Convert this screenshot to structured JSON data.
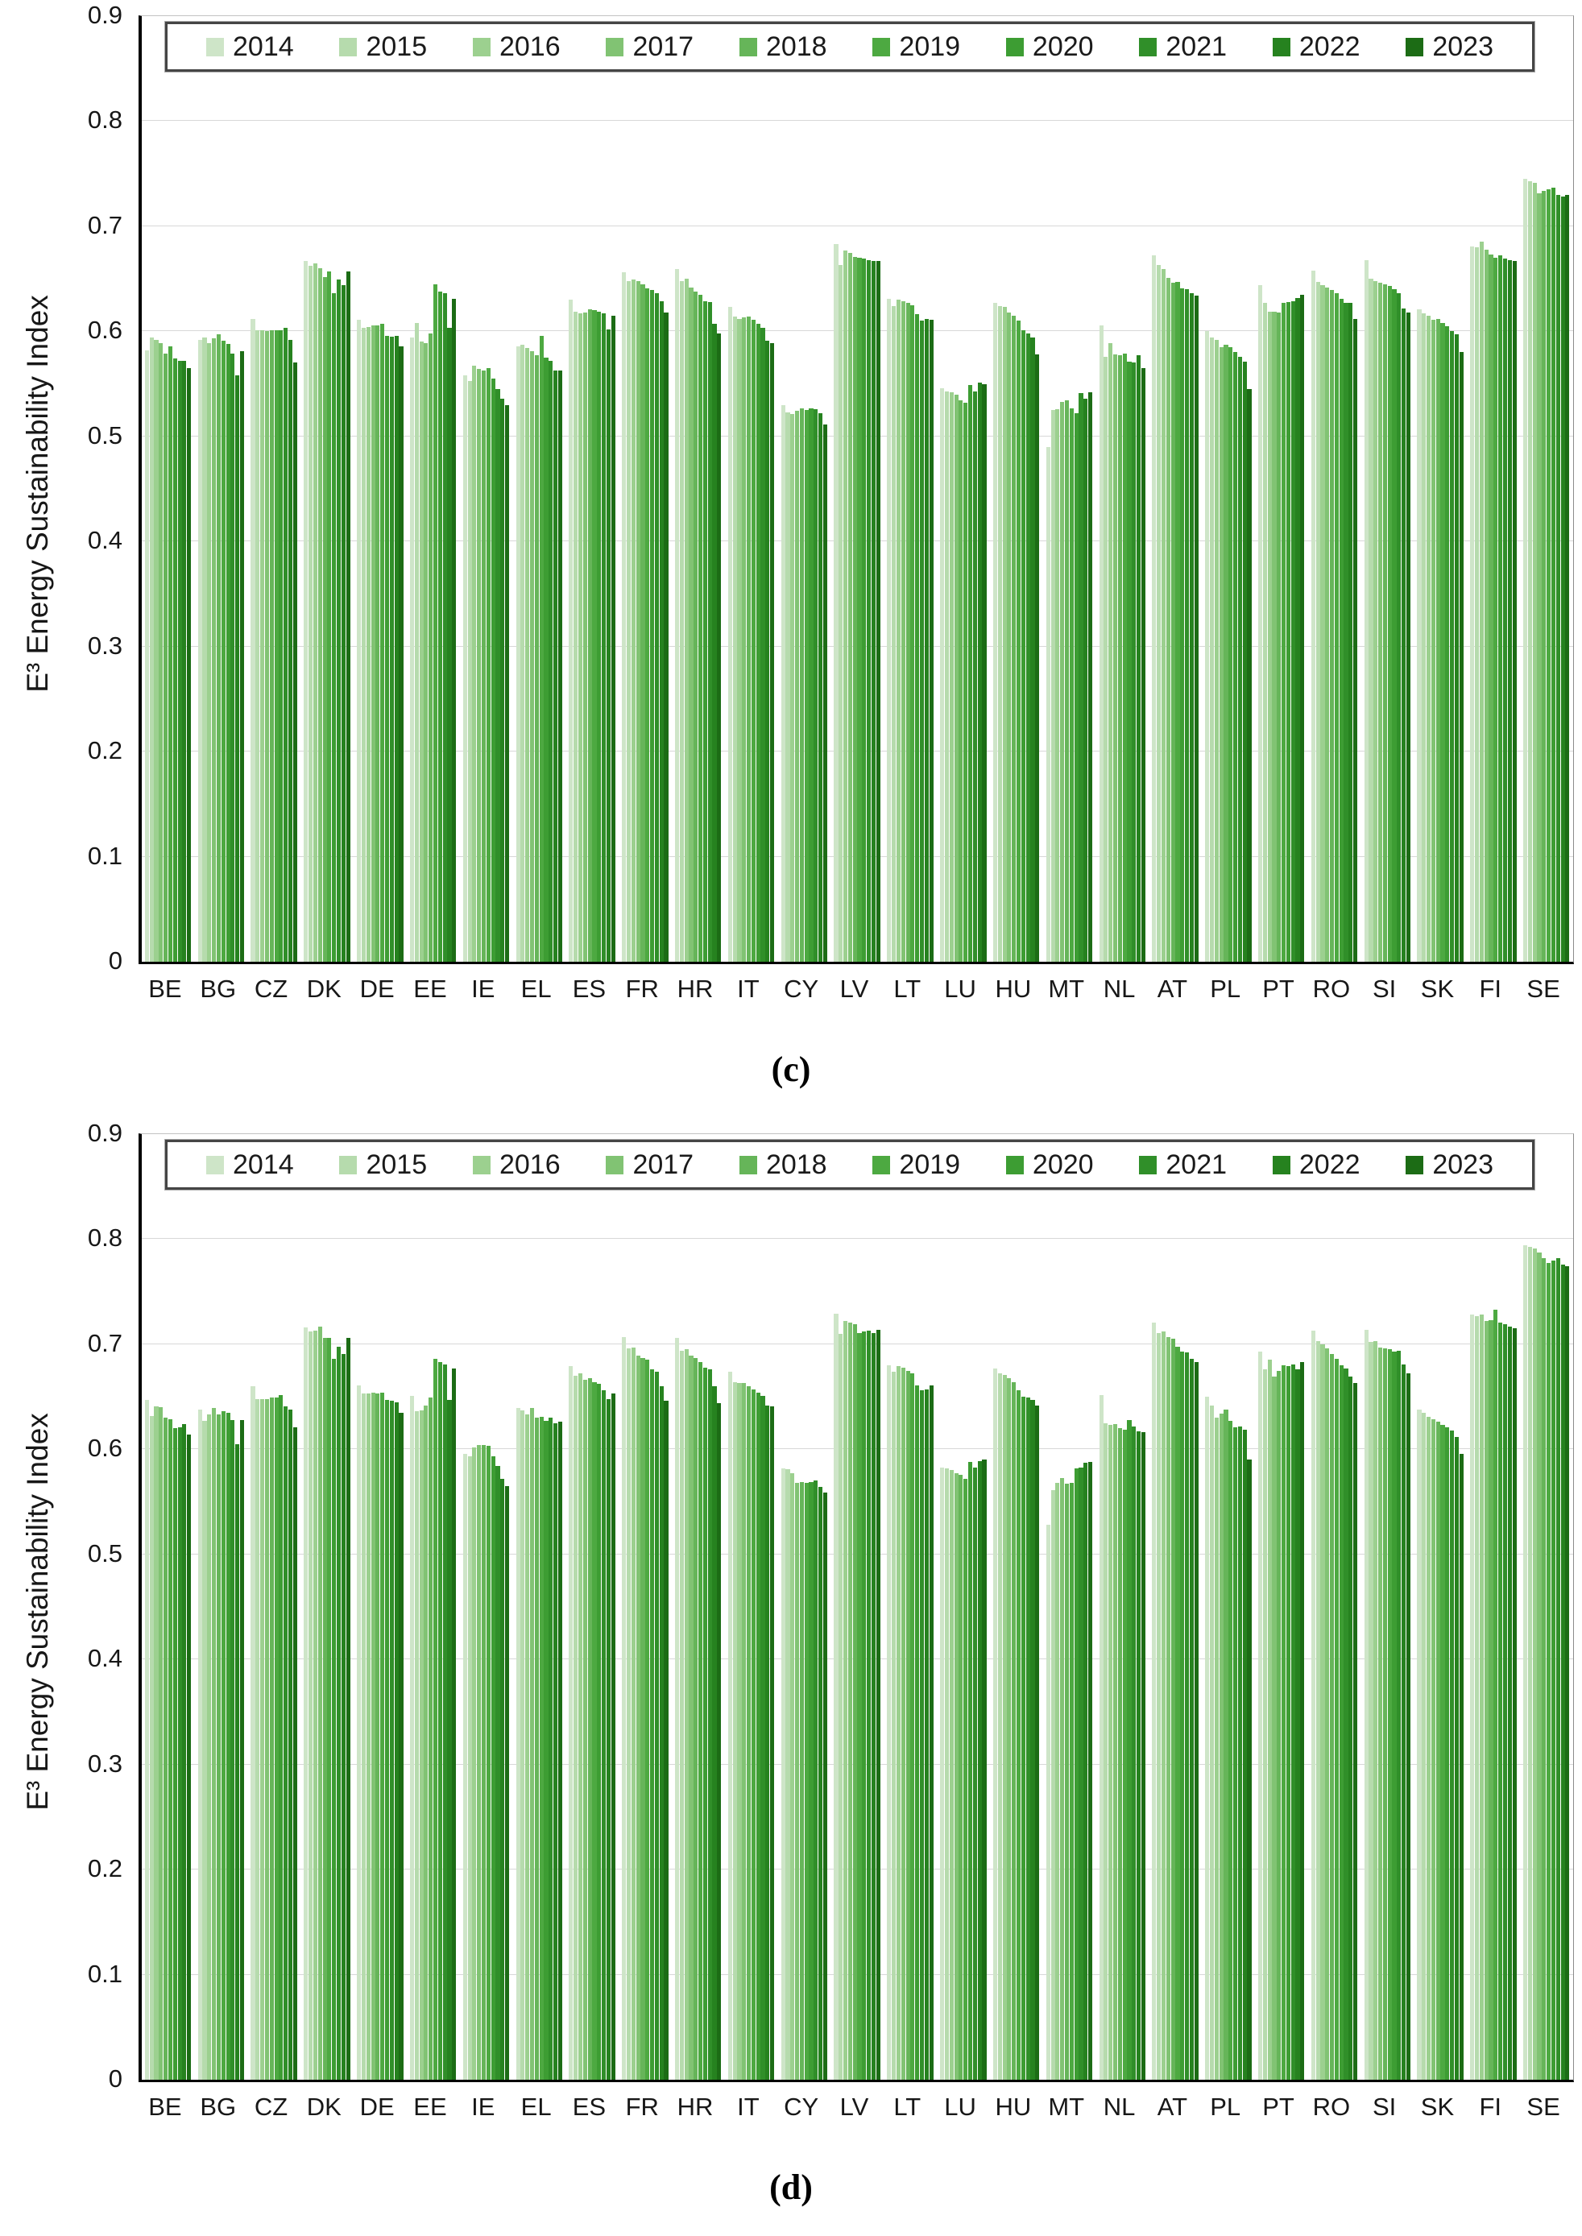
{
  "figure": {
    "ylabel": "E³ Energy Sustainability Index",
    "panels": [
      {
        "caption": "(c)"
      },
      {
        "caption": "(d)"
      }
    ]
  },
  "chart_data": [
    {
      "type": "bar",
      "title": "(c)",
      "xlabel": "",
      "ylabel": "E³ Energy Sustainability Index",
      "ylim": [
        0,
        0.9
      ],
      "yticks": [
        "0",
        "0.1",
        "0.2",
        "0.3",
        "0.4",
        "0.5",
        "0.6",
        "0.7",
        "0.8",
        "0.9"
      ],
      "grid": true,
      "legend_position": "top",
      "categories": [
        "BE",
        "BG",
        "CZ",
        "DK",
        "DE",
        "EE",
        "IE",
        "EL",
        "ES",
        "FR",
        "HR",
        "IT",
        "CY",
        "LV",
        "LT",
        "LU",
        "HU",
        "MT",
        "NL",
        "AT",
        "PL",
        "PT",
        "RO",
        "SI",
        "SK",
        "FI",
        "SE"
      ],
      "series": [
        {
          "name": "2014",
          "color": "#cee5c8",
          "values": [
            0.582,
            0.592,
            0.612,
            0.667,
            0.611,
            0.594,
            0.558,
            0.586,
            0.63,
            0.656,
            0.659,
            0.623,
            0.53,
            0.683,
            0.631,
            0.546,
            0.627,
            0.49,
            0.606,
            0.672,
            0.6,
            0.644,
            0.658,
            0.668,
            0.621,
            0.681,
            0.745
          ]
        },
        {
          "name": "2015",
          "color": "#b6dbad",
          "values": [
            0.594,
            0.594,
            0.601,
            0.662,
            0.603,
            0.608,
            0.553,
            0.587,
            0.619,
            0.648,
            0.648,
            0.614,
            0.523,
            0.663,
            0.624,
            0.543,
            0.624,
            0.525,
            0.576,
            0.663,
            0.594,
            0.627,
            0.647,
            0.65,
            0.617,
            0.68,
            0.743
          ]
        },
        {
          "name": "2016",
          "color": "#9cd08f",
          "values": [
            0.592,
            0.589,
            0.601,
            0.665,
            0.604,
            0.59,
            0.567,
            0.584,
            0.617,
            0.649,
            0.65,
            0.612,
            0.521,
            0.677,
            0.63,
            0.542,
            0.623,
            0.526,
            0.589,
            0.659,
            0.592,
            0.619,
            0.644,
            0.648,
            0.615,
            0.685,
            0.741
          ]
        },
        {
          "name": "2017",
          "color": "#81c373",
          "values": [
            0.589,
            0.593,
            0.6,
            0.66,
            0.606,
            0.589,
            0.564,
            0.581,
            0.618,
            0.648,
            0.642,
            0.613,
            0.524,
            0.675,
            0.629,
            0.54,
            0.618,
            0.533,
            0.578,
            0.651,
            0.585,
            0.619,
            0.642,
            0.646,
            0.611,
            0.678,
            0.731
          ]
        },
        {
          "name": "2018",
          "color": "#66b559",
          "values": [
            0.579,
            0.597,
            0.601,
            0.652,
            0.606,
            0.598,
            0.563,
            0.577,
            0.621,
            0.645,
            0.638,
            0.614,
            0.527,
            0.671,
            0.627,
            0.534,
            0.615,
            0.534,
            0.577,
            0.646,
            0.587,
            0.618,
            0.639,
            0.645,
            0.612,
            0.673,
            0.734
          ]
        },
        {
          "name": "2019",
          "color": "#4da941",
          "values": [
            0.586,
            0.591,
            0.601,
            0.657,
            0.607,
            0.645,
            0.565,
            0.596,
            0.62,
            0.641,
            0.635,
            0.611,
            0.525,
            0.67,
            0.625,
            0.532,
            0.61,
            0.527,
            0.579,
            0.647,
            0.585,
            0.627,
            0.636,
            0.643,
            0.608,
            0.67,
            0.735
          ]
        },
        {
          "name": "2020",
          "color": "#3d9d33",
          "values": [
            0.574,
            0.588,
            0.601,
            0.636,
            0.596,
            0.638,
            0.555,
            0.575,
            0.619,
            0.639,
            0.629,
            0.607,
            0.527,
            0.669,
            0.616,
            0.549,
            0.601,
            0.522,
            0.571,
            0.641,
            0.58,
            0.628,
            0.631,
            0.64,
            0.605,
            0.672,
            0.737
          ]
        },
        {
          "name": "2021",
          "color": "#308f29",
          "values": [
            0.572,
            0.579,
            0.603,
            0.649,
            0.595,
            0.636,
            0.545,
            0.572,
            0.617,
            0.636,
            0.628,
            0.603,
            0.526,
            0.668,
            0.61,
            0.543,
            0.598,
            0.541,
            0.57,
            0.64,
            0.576,
            0.629,
            0.627,
            0.636,
            0.6,
            0.669,
            0.73
          ]
        },
        {
          "name": "2022",
          "color": "#26821f",
          "values": [
            0.572,
            0.558,
            0.592,
            0.644,
            0.596,
            0.603,
            0.536,
            0.563,
            0.602,
            0.629,
            0.607,
            0.591,
            0.522,
            0.667,
            0.612,
            0.551,
            0.594,
            0.536,
            0.577,
            0.636,
            0.571,
            0.632,
            0.627,
            0.622,
            0.597,
            0.668,
            0.728
          ]
        },
        {
          "name": "2023",
          "color": "#1c6c15",
          "values": [
            0.565,
            0.581,
            0.57,
            0.657,
            0.586,
            0.631,
            0.53,
            0.563,
            0.615,
            0.618,
            0.598,
            0.589,
            0.511,
            0.667,
            0.611,
            0.55,
            0.578,
            0.542,
            0.565,
            0.634,
            0.545,
            0.635,
            0.612,
            0.618,
            0.58,
            0.667,
            0.73
          ]
        }
      ]
    },
    {
      "type": "bar",
      "title": "(d)",
      "xlabel": "",
      "ylabel": "E³ Energy Sustainability Index",
      "ylim": [
        0,
        0.9
      ],
      "yticks": [
        "0",
        "0.1",
        "0.2",
        "0.3",
        "0.4",
        "0.5",
        "0.6",
        "0.7",
        "0.8",
        "0.9"
      ],
      "grid": true,
      "legend_position": "top",
      "categories": [
        "BE",
        "BG",
        "CZ",
        "DK",
        "DE",
        "EE",
        "IE",
        "EL",
        "ES",
        "FR",
        "HR",
        "IT",
        "CY",
        "LV",
        "LT",
        "LU",
        "HU",
        "MT",
        "NL",
        "AT",
        "PL",
        "PT",
        "RO",
        "SI",
        "SK",
        "FI",
        "SE"
      ],
      "series": [
        {
          "name": "2014",
          "color": "#cee5c8",
          "values": [
            0.647,
            0.638,
            0.66,
            0.716,
            0.661,
            0.651,
            0.596,
            0.639,
            0.679,
            0.707,
            0.706,
            0.674,
            0.582,
            0.729,
            0.68,
            0.583,
            0.677,
            0.528,
            0.652,
            0.721,
            0.65,
            0.693,
            0.713,
            0.714,
            0.638,
            0.728,
            0.794
          ]
        },
        {
          "name": "2015",
          "color": "#b6dbad",
          "values": [
            0.632,
            0.627,
            0.648,
            0.712,
            0.653,
            0.636,
            0.593,
            0.637,
            0.67,
            0.696,
            0.694,
            0.664,
            0.581,
            0.71,
            0.674,
            0.582,
            0.672,
            0.561,
            0.625,
            0.711,
            0.642,
            0.676,
            0.703,
            0.702,
            0.635,
            0.727,
            0.793
          ]
        },
        {
          "name": "2016",
          "color": "#9cd08f",
          "values": [
            0.641,
            0.633,
            0.648,
            0.713,
            0.653,
            0.637,
            0.602,
            0.633,
            0.672,
            0.697,
            0.695,
            0.663,
            0.577,
            0.722,
            0.679,
            0.58,
            0.671,
            0.568,
            0.623,
            0.712,
            0.63,
            0.685,
            0.7,
            0.703,
            0.631,
            0.728,
            0.791
          ]
        },
        {
          "name": "2017",
          "color": "#81c373",
          "values": [
            0.64,
            0.639,
            0.648,
            0.717,
            0.654,
            0.642,
            0.604,
            0.639,
            0.666,
            0.689,
            0.689,
            0.663,
            0.568,
            0.721,
            0.678,
            0.577,
            0.668,
            0.573,
            0.624,
            0.707,
            0.634,
            0.669,
            0.696,
            0.697,
            0.629,
            0.722,
            0.787
          ]
        },
        {
          "name": "2018",
          "color": "#66b559",
          "values": [
            0.63,
            0.633,
            0.649,
            0.706,
            0.653,
            0.649,
            0.604,
            0.63,
            0.668,
            0.687,
            0.687,
            0.66,
            0.569,
            0.719,
            0.675,
            0.576,
            0.664,
            0.567,
            0.62,
            0.705,
            0.638,
            0.675,
            0.691,
            0.696,
            0.626,
            0.723,
            0.782
          ]
        },
        {
          "name": "2019",
          "color": "#4da941",
          "values": [
            0.629,
            0.636,
            0.649,
            0.706,
            0.654,
            0.686,
            0.603,
            0.631,
            0.664,
            0.685,
            0.683,
            0.657,
            0.568,
            0.711,
            0.672,
            0.572,
            0.656,
            0.568,
            0.619,
            0.698,
            0.627,
            0.68,
            0.686,
            0.695,
            0.623,
            0.733,
            0.777
          ]
        },
        {
          "name": "2020",
          "color": "#3d9d33",
          "values": [
            0.62,
            0.635,
            0.652,
            0.686,
            0.647,
            0.683,
            0.593,
            0.627,
            0.662,
            0.676,
            0.678,
            0.654,
            0.569,
            0.712,
            0.661,
            0.588,
            0.65,
            0.582,
            0.628,
            0.693,
            0.621,
            0.679,
            0.68,
            0.693,
            0.621,
            0.721,
            0.78
          ]
        },
        {
          "name": "2021",
          "color": "#308f29",
          "values": [
            0.621,
            0.628,
            0.641,
            0.698,
            0.646,
            0.681,
            0.584,
            0.63,
            0.656,
            0.674,
            0.676,
            0.651,
            0.57,
            0.713,
            0.656,
            0.583,
            0.649,
            0.583,
            0.622,
            0.692,
            0.622,
            0.681,
            0.677,
            0.694,
            0.618,
            0.719,
            0.782
          ]
        },
        {
          "name": "2022",
          "color": "#26821f",
          "values": [
            0.624,
            0.605,
            0.638,
            0.691,
            0.645,
            0.647,
            0.572,
            0.625,
            0.648,
            0.66,
            0.66,
            0.642,
            0.564,
            0.711,
            0.657,
            0.589,
            0.647,
            0.587,
            0.617,
            0.686,
            0.619,
            0.676,
            0.669,
            0.681,
            0.612,
            0.717,
            0.776
          ]
        },
        {
          "name": "2023",
          "color": "#1c6c15",
          "values": [
            0.614,
            0.628,
            0.621,
            0.706,
            0.635,
            0.677,
            0.565,
            0.626,
            0.653,
            0.646,
            0.644,
            0.641,
            0.559,
            0.714,
            0.661,
            0.59,
            0.642,
            0.588,
            0.616,
            0.683,
            0.59,
            0.683,
            0.663,
            0.672,
            0.596,
            0.715,
            0.774
          ]
        }
      ]
    }
  ]
}
